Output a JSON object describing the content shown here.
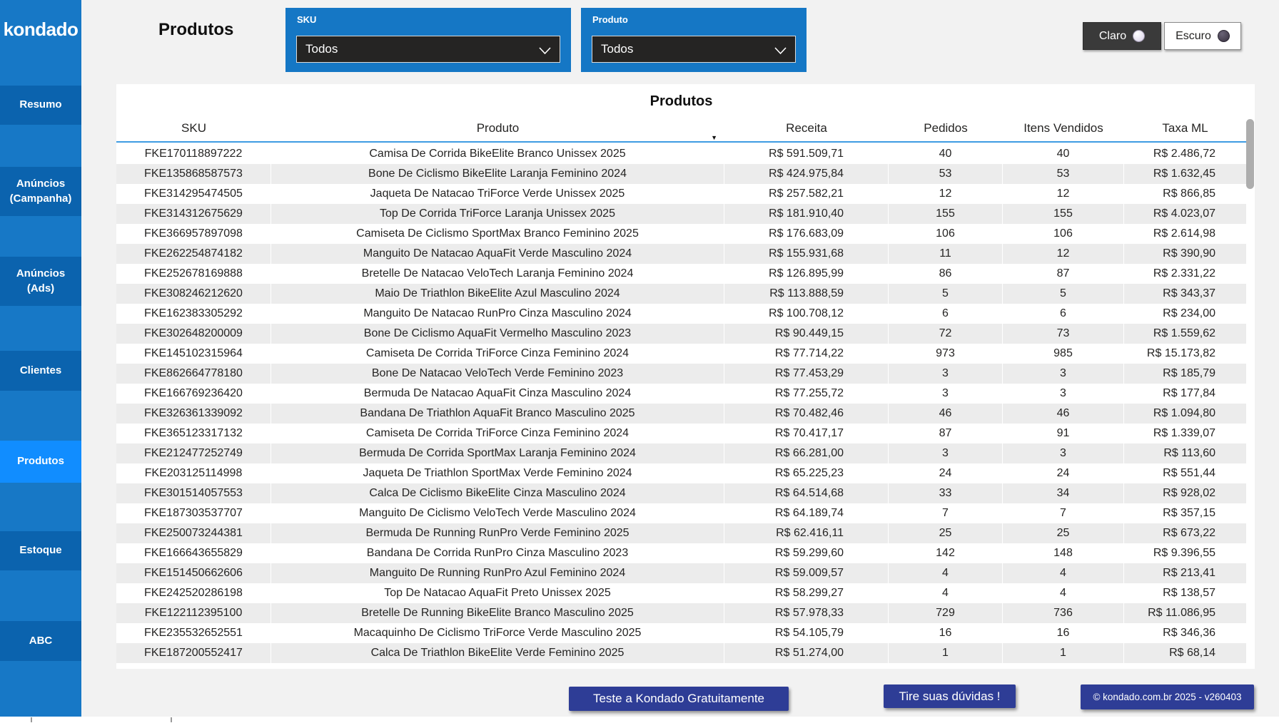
{
  "app": {
    "logo": "kondado",
    "page_title": "Produtos"
  },
  "sidebar": {
    "items": [
      {
        "label": "Resumo",
        "active": false
      },
      {
        "label": "Anúncios (Campanha)",
        "active": false
      },
      {
        "label": "Anúncios (Ads)",
        "active": false
      },
      {
        "label": "Clientes",
        "active": false
      },
      {
        "label": "Produtos",
        "active": true
      },
      {
        "label": "Estoque",
        "active": false
      },
      {
        "label": "ABC",
        "active": false
      }
    ]
  },
  "filters": {
    "sku": {
      "label": "SKU",
      "value": "Todos"
    },
    "produto": {
      "label": "Produto",
      "value": "Todos"
    }
  },
  "theme_toggle": {
    "light_label": "Claro",
    "dark_label": "Escuro",
    "active": "Claro"
  },
  "table": {
    "title": "Produtos",
    "columns": [
      {
        "label": "SKU",
        "sorted": false
      },
      {
        "label": "Produto",
        "sorted": "desc"
      },
      {
        "label": "Receita",
        "sorted": false
      },
      {
        "label": "Pedidos",
        "sorted": false
      },
      {
        "label": "Itens Vendidos",
        "sorted": false
      },
      {
        "label": "Taxa ML",
        "sorted": false
      }
    ],
    "rows": [
      [
        "FKE170118897222",
        "Camisa De Corrida BikeElite Branco Unissex 2025",
        "R$ 591.509,71",
        "40",
        "40",
        "R$ 2.486,72"
      ],
      [
        "FKE135868587573",
        "Bone De Ciclismo BikeElite Laranja Feminino 2024",
        "R$ 424.975,84",
        "53",
        "53",
        "R$ 1.632,45"
      ],
      [
        "FKE314295474505",
        "Jaqueta De Natacao TriForce Verde Unissex 2025",
        "R$ 257.582,21",
        "12",
        "12",
        "R$ 866,85"
      ],
      [
        "FKE314312675629",
        "Top De Corrida TriForce Laranja Unissex 2025",
        "R$ 181.910,40",
        "155",
        "155",
        "R$ 4.023,07"
      ],
      [
        "FKE366957897098",
        "Camiseta De Ciclismo SportMax Branco Feminino 2025",
        "R$ 176.683,09",
        "106",
        "106",
        "R$ 2.614,98"
      ],
      [
        "FKE262254874182",
        "Manguito De Natacao AquaFit Verde Masculino 2024",
        "R$ 155.931,68",
        "11",
        "12",
        "R$ 390,90"
      ],
      [
        "FKE252678169888",
        "Bretelle De Natacao VeloTech Laranja Feminino 2024",
        "R$ 126.895,99",
        "86",
        "87",
        "R$ 2.331,22"
      ],
      [
        "FKE308246212620",
        "Maio De Triathlon BikeElite Azul Masculino 2024",
        "R$ 113.888,59",
        "5",
        "5",
        "R$ 343,37"
      ],
      [
        "FKE162383305292",
        "Manguito De Natacao RunPro Cinza Masculino 2024",
        "R$ 100.708,12",
        "6",
        "6",
        "R$ 234,00"
      ],
      [
        "FKE302648200009",
        "Bone De Ciclismo AquaFit Vermelho Masculino 2023",
        "R$ 90.449,15",
        "72",
        "73",
        "R$ 1.559,62"
      ],
      [
        "FKE145102315964",
        "Camiseta De Corrida TriForce Cinza Feminino 2024",
        "R$ 77.714,22",
        "973",
        "985",
        "R$ 15.173,82"
      ],
      [
        "FKE862664778180",
        "Bone De Natacao VeloTech Verde Feminino 2023",
        "R$ 77.453,29",
        "3",
        "3",
        "R$ 185,79"
      ],
      [
        "FKE166769236420",
        "Bermuda De Natacao AquaFit Cinza Masculino 2024",
        "R$ 77.255,72",
        "3",
        "3",
        "R$ 177,84"
      ],
      [
        "FKE326361339092",
        "Bandana De Triathlon AquaFit Branco Masculino 2025",
        "R$ 70.482,46",
        "46",
        "46",
        "R$ 1.094,80"
      ],
      [
        "FKE365123317132",
        "Camiseta De Corrida TriForce Cinza Feminino 2024",
        "R$ 70.417,17",
        "87",
        "91",
        "R$ 1.339,07"
      ],
      [
        "FKE212477252749",
        "Bermuda De Corrida SportMax Laranja Feminino 2024",
        "R$ 66.281,00",
        "3",
        "3",
        "R$ 113,60"
      ],
      [
        "FKE203125114998",
        "Jaqueta De Triathlon SportMax Verde Feminino 2024",
        "R$ 65.225,23",
        "24",
        "24",
        "R$ 551,44"
      ],
      [
        "FKE301514057553",
        "Calca De Ciclismo BikeElite Cinza Masculino 2024",
        "R$ 64.514,68",
        "33",
        "34",
        "R$ 928,02"
      ],
      [
        "FKE187303537707",
        "Manguito De Ciclismo VeloTech Verde Masculino 2024",
        "R$ 64.189,74",
        "7",
        "7",
        "R$ 357,15"
      ],
      [
        "FKE250073244381",
        "Bermuda De Running RunPro Verde Feminino 2025",
        "R$ 62.416,11",
        "25",
        "25",
        "R$ 673,22"
      ],
      [
        "FKE166643655829",
        "Bandana De Corrida RunPro Cinza Masculino 2023",
        "R$ 59.299,60",
        "142",
        "148",
        "R$ 9.396,55"
      ],
      [
        "FKE151450662606",
        "Manguito De Running RunPro Azul Feminino 2024",
        "R$ 59.009,57",
        "4",
        "4",
        "R$ 213,41"
      ],
      [
        "FKE242520286198",
        "Top De Natacao AquaFit Preto Unissex 2025",
        "R$ 58.299,27",
        "4",
        "4",
        "R$ 138,57"
      ],
      [
        "FKE122112395100",
        "Bretelle De Running BikeElite Branco Masculino 2025",
        "R$ 57.978,33",
        "729",
        "736",
        "R$ 11.086,95"
      ],
      [
        "FKE235532652551",
        "Macaquinho De Ciclismo TriForce Verde Masculino 2025",
        "R$ 54.105,79",
        "16",
        "16",
        "R$ 346,36"
      ],
      [
        "FKE187200552417",
        "Calca De Triathlon BikeElite Verde Feminino 2025",
        "R$ 51.274,00",
        "1",
        "1",
        "R$ 68,14"
      ]
    ]
  },
  "footer": {
    "cta_trial": "Teste a Kondado Gratuitamente",
    "cta_questions": "Tire suas dúvidas !",
    "version": "© kondado.com.br 2025 - v260403"
  },
  "colors": {
    "sidebar_bg": "#1778C6",
    "sidebar_item": "#0B63AE",
    "sidebar_active": "#118DFF",
    "filter_card": "#1577C5",
    "dropdown_bg": "#252423",
    "header_accent_line": "#3D9BE2",
    "row_alt": "#ECECEC",
    "footer_button": "#2E3D96",
    "claro_button_bg": "#3A3A3A"
  }
}
